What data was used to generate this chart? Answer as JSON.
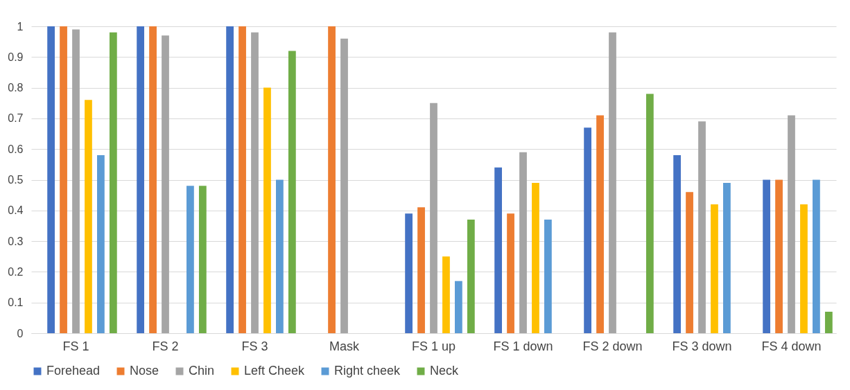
{
  "chart_data": {
    "type": "bar",
    "categories": [
      "FS 1",
      "FS 2",
      "FS 3",
      "Mask",
      "FS 1 up",
      "FS 1 down",
      "FS 2 down",
      "FS 3 down",
      "FS 4 down"
    ],
    "series": [
      {
        "name": "Forehead",
        "color": "#4472c4",
        "values": [
          1,
          1,
          1,
          null,
          0.39,
          0.54,
          0.67,
          0.58,
          0.5
        ]
      },
      {
        "name": "Nose",
        "color": "#ed7d31",
        "values": [
          1,
          1,
          1,
          1,
          0.41,
          0.39,
          0.71,
          0.46,
          0.5
        ]
      },
      {
        "name": "Chin",
        "color": "#a5a5a5",
        "values": [
          0.99,
          0.97,
          0.98,
          0.96,
          0.75,
          0.59,
          0.98,
          0.69,
          0.71
        ]
      },
      {
        "name": "Left Cheek",
        "color": "#ffc000",
        "values": [
          0.76,
          null,
          0.8,
          null,
          0.25,
          0.49,
          null,
          0.42,
          0.42
        ]
      },
      {
        "name": "Right cheek",
        "color": "#5b9bd5",
        "values": [
          0.58,
          0.48,
          0.5,
          null,
          0.17,
          0.37,
          null,
          0.49,
          0.5
        ]
      },
      {
        "name": "Neck",
        "color": "#70ad47",
        "values": [
          0.98,
          0.48,
          0.92,
          null,
          0.37,
          null,
          0.78,
          null,
          0.07
        ]
      }
    ],
    "ylim": [
      0,
      1
    ],
    "yticks": [
      0,
      0.1,
      0.2,
      0.3,
      0.4,
      0.5,
      0.6,
      0.7,
      0.8,
      0.9,
      1
    ],
    "grid": "y",
    "legend": "bottom"
  }
}
